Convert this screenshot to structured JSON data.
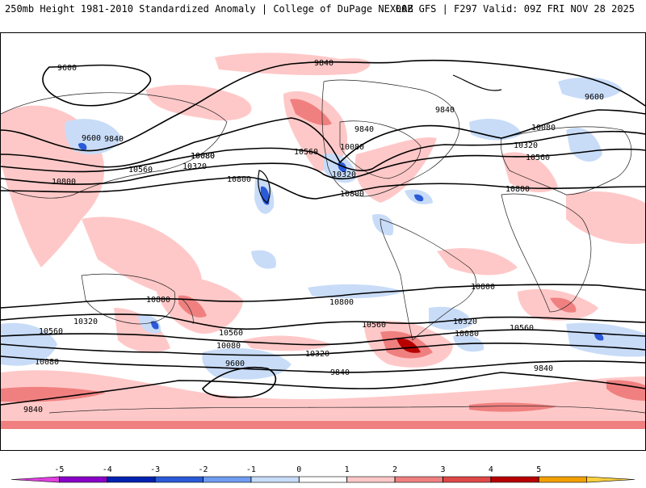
{
  "header": {
    "title": "250mb Height 1981-2010 Standardized Anomaly | College of DuPage NEXLAB",
    "run": "00Z GFS | F297 Valid: 09Z FRI NOV 28 2025"
  },
  "contour_labels": [
    "9600",
    "9840",
    "9600",
    "9840",
    "10080",
    "10320",
    "10560",
    "10800",
    "10800",
    "9840",
    "9840",
    "10080",
    "10560",
    "10080",
    "10320",
    "10800",
    "9600",
    "10080",
    "10320",
    "10560",
    "10800",
    "10800",
    "10800",
    "10320",
    "10560",
    "10080",
    "10560",
    "10080",
    "10320",
    "9600",
    "9840",
    "9840",
    "10800",
    "10560",
    "10320",
    "10080",
    "10800",
    "10560",
    "10080",
    "9840",
    "9840"
  ],
  "colorbar": {
    "ticks": [
      "-5",
      "-4",
      "-3",
      "-2",
      "-1",
      "0",
      "1",
      "2",
      "3",
      "4",
      "5"
    ],
    "colors": [
      "#e040e0",
      "#8a00c8",
      "#0022b0",
      "#2a5ad8",
      "#6e9cf0",
      "#c8dcf8",
      "#ffffff",
      "#ffc8c8",
      "#f08080",
      "#e04848",
      "#b80000",
      "#f2a000",
      "#ffd040"
    ]
  }
}
